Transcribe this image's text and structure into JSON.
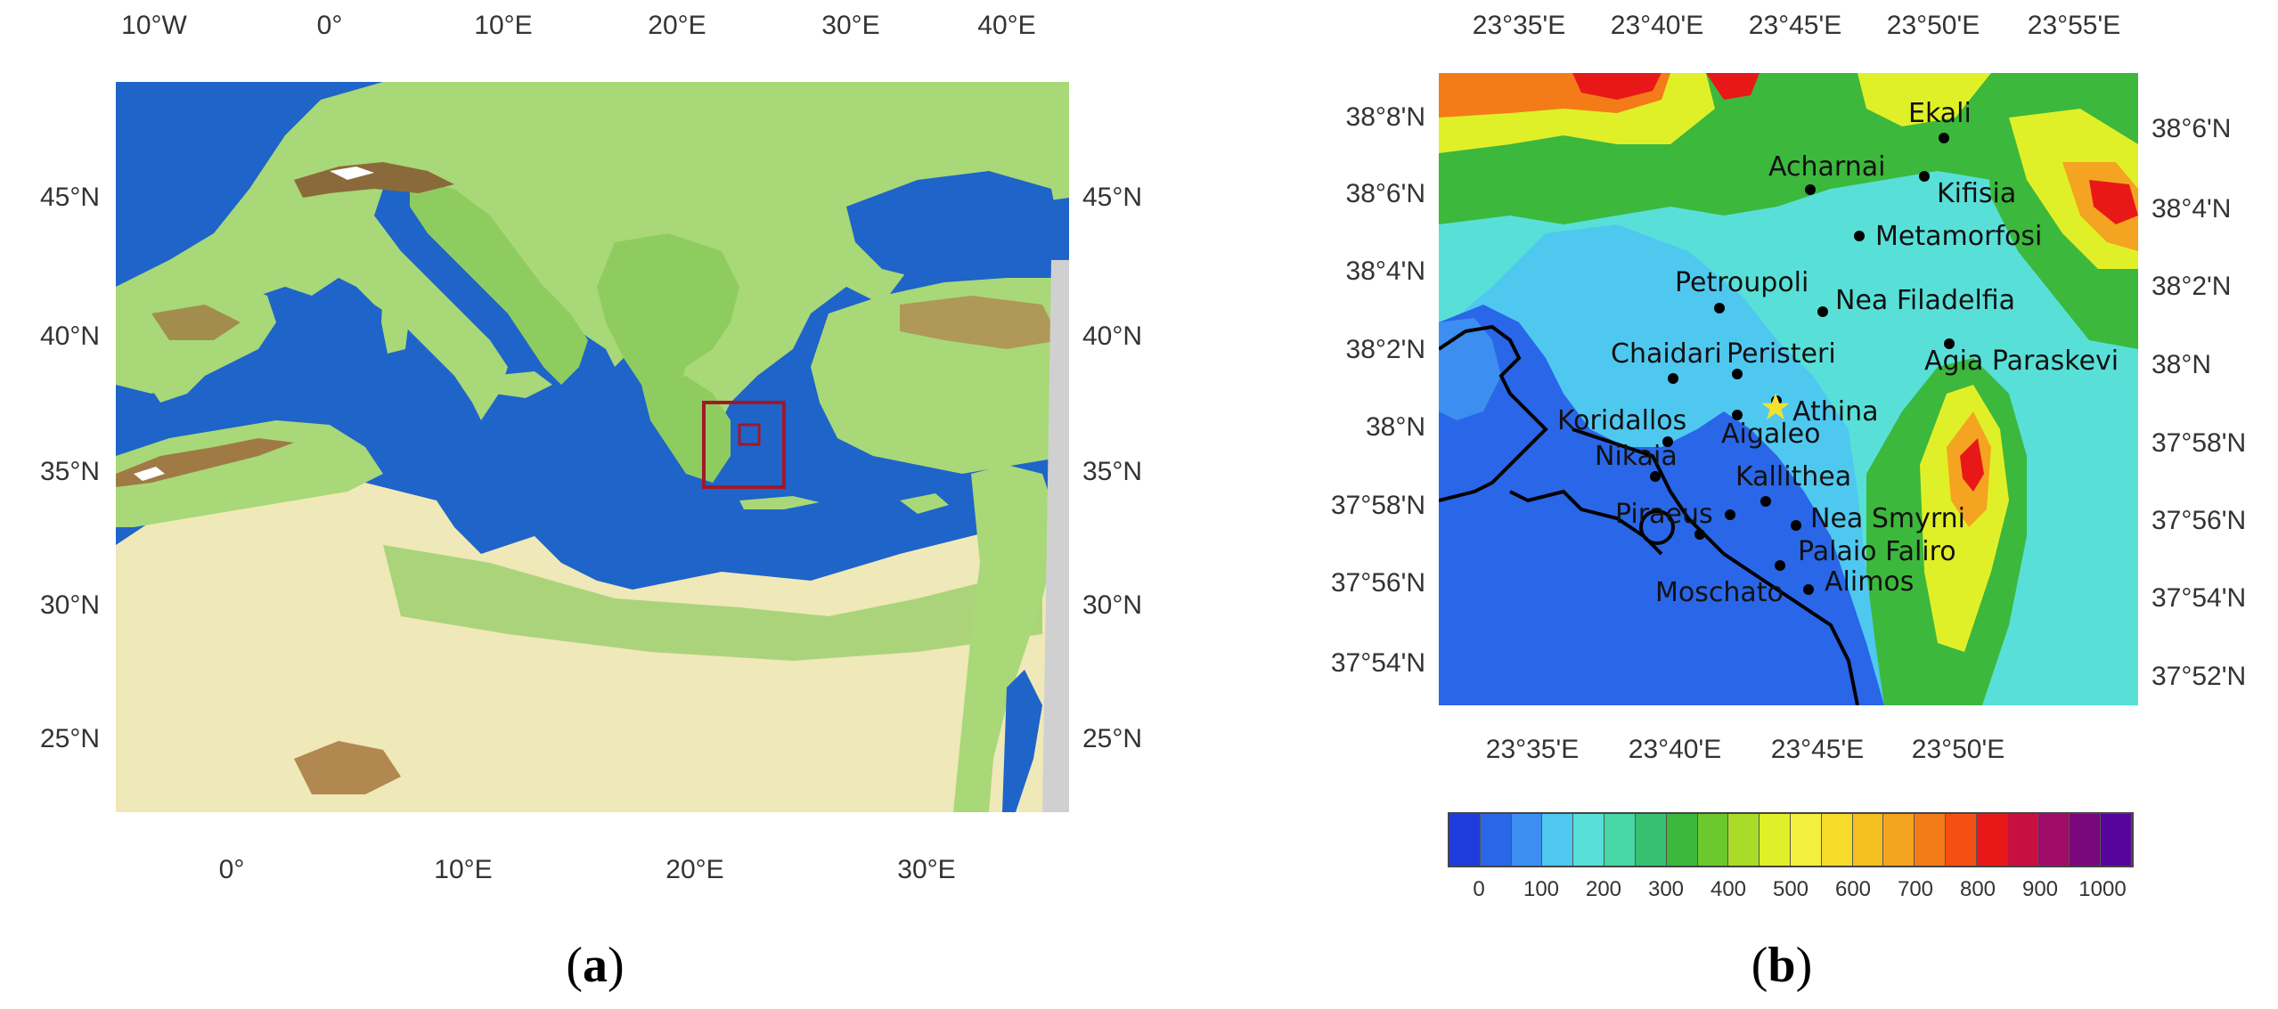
{
  "panel_a": {
    "label": "a",
    "top_ticks": [
      "10°W",
      "0°",
      "10°E",
      "20°E",
      "30°E",
      "40°E"
    ],
    "bottom_ticks": [
      "0°",
      "10°E",
      "20°E",
      "30°E"
    ],
    "left_ticks": [
      "45°N",
      "40°N",
      "35°N",
      "30°N",
      "25°N"
    ],
    "right_ticks": [
      "45°N",
      "40°N",
      "35°N",
      "30°N",
      "25°N"
    ],
    "colors": {
      "sea": "#1f64c8",
      "lowland": "#a8d878",
      "upland": "#6fbf4a",
      "desert": "#efe8b8",
      "mountain": "#8a6a3a",
      "snow": "#ffffff",
      "box": "#a0182b"
    }
  },
  "panel_b": {
    "label": "b",
    "top_ticks": [
      "23°35'E",
      "23°40'E",
      "23°45'E",
      "23°50'E",
      "23°55'E"
    ],
    "bottom_ticks": [
      "23°35'E",
      "23°40'E",
      "23°45'E",
      "23°50'E"
    ],
    "left_ticks": [
      "38°8'N",
      "38°6'N",
      "38°4'N",
      "38°2'N",
      "38°N",
      "37°58'N",
      "37°56'N",
      "37°54'N"
    ],
    "right_ticks": [
      "38°6'N",
      "38°4'N",
      "38°2'N",
      "38°N",
      "37°58'N",
      "37°56'N",
      "37°54'N",
      "37°52'N"
    ],
    "places": [
      {
        "name": "Ekali"
      },
      {
        "name": "Acharnai"
      },
      {
        "name": "Kifisia"
      },
      {
        "name": "Metamorfosi"
      },
      {
        "name": "Petroupoli"
      },
      {
        "name": "Nea Filadelfia"
      },
      {
        "name": "Chaidari"
      },
      {
        "name": "Peristeri"
      },
      {
        "name": "Agia Paraskevi"
      },
      {
        "name": "Athina"
      },
      {
        "name": "Koridallos"
      },
      {
        "name": "Aigaleo"
      },
      {
        "name": "Nikaia"
      },
      {
        "name": "Kallithea"
      },
      {
        "name": "Piraeus"
      },
      {
        "name": "Nea Smyrni"
      },
      {
        "name": "Palaio Faliro"
      },
      {
        "name": "Moschato"
      },
      {
        "name": "Alimos"
      }
    ],
    "colorbar": {
      "labels": [
        "0",
        "100",
        "200",
        "300",
        "400",
        "500",
        "600",
        "700",
        "800",
        "900",
        "1000"
      ],
      "colors": [
        "#1e3cdc",
        "#2a66e8",
        "#3c8ef0",
        "#4fc8f0",
        "#58e0d8",
        "#48d8a8",
        "#38c070",
        "#3cb83c",
        "#6cc82c",
        "#a8dc28",
        "#e0f028",
        "#f4f040",
        "#f4dc28",
        "#f4c020",
        "#f4a420",
        "#f47c18",
        "#f45014",
        "#e81818",
        "#c81040",
        "#a00c68",
        "#78087c",
        "#58049c"
      ]
    }
  }
}
